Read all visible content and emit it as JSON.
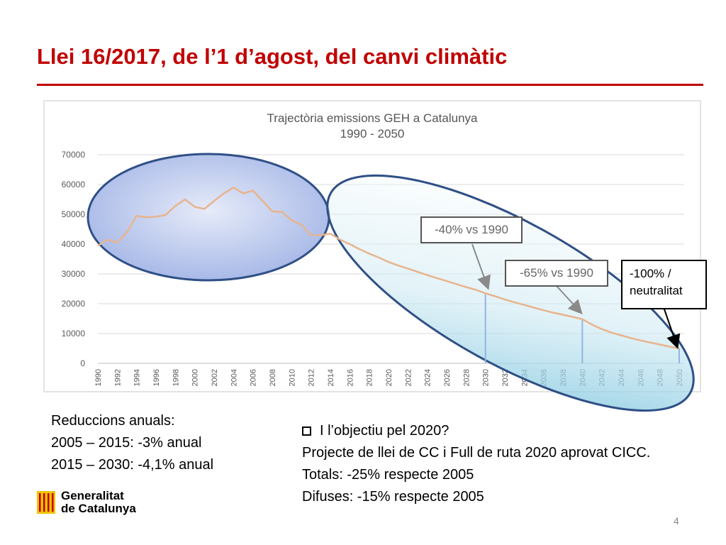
{
  "slide": {
    "title": "Llei 16/2017, de l’1 d’agost, del canvi climàtic",
    "page_number": "4",
    "brand_color": "#c00000"
  },
  "notes": {
    "heading": "Reduccions anuals:",
    "line1": "2005 – 2015: -3% anual",
    "line2": "2015 – 2030: -4,1% anual"
  },
  "objective": {
    "bullet": "I l’objectiu pel 2020?",
    "line1": "Projecte de llei de CC i Full de ruta 2020 aprovat CICC.",
    "line2": "Totals: -25% respecte 2005",
    "line3": "Difuses: -15% respecte 2005"
  },
  "logo": {
    "line1": "Generalitat",
    "line2": "de Catalunya"
  },
  "callouts": {
    "c1": "-40% vs 1990",
    "c2": "-65% vs 1990",
    "c3_line1": "-100% /",
    "c3_line2": "neutralitat"
  },
  "chart_data": {
    "type": "line",
    "title": "Trajectòria emissions  GEH a Catalunya",
    "subtitle": "1990 - 2050",
    "ylim": [
      0,
      70000
    ],
    "yticks": [
      0,
      10000,
      20000,
      30000,
      40000,
      50000,
      60000,
      70000
    ],
    "xticks": [
      "1990",
      "1992",
      "1994",
      "1996",
      "1998",
      "2000",
      "2002",
      "2004",
      "2006",
      "2008",
      "2010",
      "2012",
      "2014",
      "2016",
      "2018",
      "2020",
      "2022",
      "2024",
      "2026",
      "2028",
      "2030",
      "2032",
      "2034",
      "2036",
      "2038",
      "2040",
      "2042",
      "2044",
      "2046",
      "2048",
      "2050"
    ],
    "line_color": "#e8b48e",
    "series": [
      {
        "x": [
          1990,
          1991,
          1992,
          1993,
          1994,
          1995,
          1996,
          1997,
          1998,
          1999,
          2000,
          2001,
          2002,
          2003,
          2004,
          2005,
          2006,
          2007,
          2008,
          2009,
          2010,
          2011,
          2012,
          2013,
          2014,
          2015,
          2016,
          2017,
          2018,
          2019,
          2020,
          2021,
          2022,
          2023,
          2024,
          2025,
          2026,
          2027,
          2028,
          2029,
          2030,
          2031,
          2032,
          2033,
          2034,
          2035,
          2036,
          2037,
          2038,
          2039,
          2040,
          2041,
          2042,
          2043,
          2044,
          2045,
          2046,
          2047,
          2048,
          2049,
          2050
        ],
        "values": [
          39500,
          41500,
          40500,
          44000,
          49500,
          49000,
          49200,
          49800,
          52800,
          55000,
          52500,
          51800,
          54500,
          57000,
          59000,
          57000,
          58000,
          54500,
          51000,
          50800,
          48000,
          46500,
          43000,
          43000,
          43500,
          41500,
          40000,
          38300,
          36800,
          35500,
          34000,
          32800,
          31800,
          30700,
          29600,
          28600,
          27600,
          26600,
          25600,
          24700,
          23500,
          22500,
          21400,
          20500,
          19600,
          18700,
          17800,
          17000,
          16300,
          15600,
          14800,
          13000,
          11500,
          10300,
          9400,
          8500,
          7700,
          7000,
          6300,
          5600,
          5000
        ]
      }
    ],
    "markers": [
      {
        "year": 2030,
        "value": 23500
      },
      {
        "year": 2040,
        "value": 14800
      },
      {
        "year": 2050,
        "value": 5000
      }
    ]
  }
}
